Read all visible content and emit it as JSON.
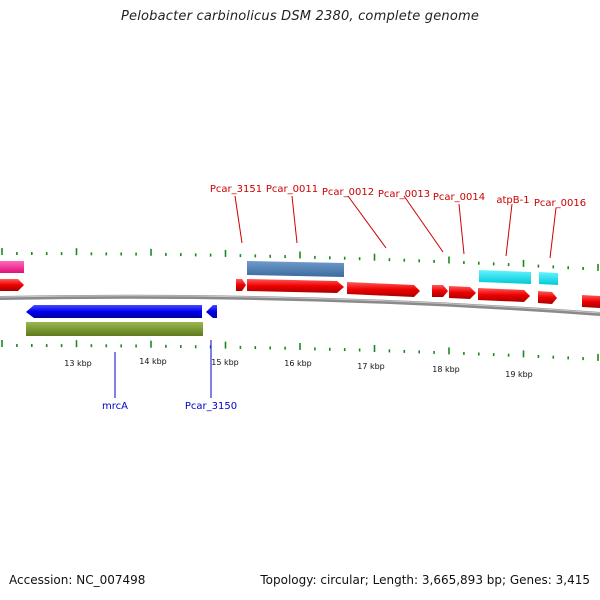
{
  "title": "Pelobacter carbinolicus DSM 2380, complete genome",
  "footer": {
    "accession": "Accession: NC_007498",
    "summary": "Topology: circular; Length: 3,665,893 bp; Genes: 3,415"
  },
  "colors": {
    "forward_gene": "#ee0000",
    "reverse_gene": "#0000ee",
    "label_forward": "#cc0000",
    "label_reverse": "#0000cc",
    "steelblue_feature": "#4a7fb5",
    "cyan_feature": "#00e5f0",
    "olive_feature": "#7a9a2e",
    "magenta_feature": "#ff1493",
    "tick": "#1a8a1a",
    "backbone": "#888888"
  },
  "scale_labels": [
    "13 kbp",
    "14 kbp",
    "15 kbp",
    "16 kbp",
    "17 kbp",
    "18 kbp",
    "19 kbp"
  ],
  "top_gene_labels": [
    "Pcar_3151",
    "Pcar_0011",
    "Pcar_0012",
    "Pcar_0013",
    "Pcar_0014",
    "atpB-1",
    "Pcar_0016"
  ],
  "bottom_gene_labels": [
    "mrcA",
    "Pcar_3150"
  ]
}
